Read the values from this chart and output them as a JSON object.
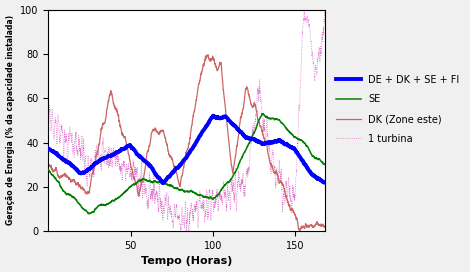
{
  "xlabel": "Tempo (Horas)",
  "ylabel": "Geração de Energia (% da capacidade instalada)",
  "xlim": [
    0,
    168
  ],
  "ylim": [
    0,
    100
  ],
  "xticks": [
    50,
    100,
    150
  ],
  "yticks": [
    0,
    20,
    40,
    60,
    80,
    100
  ],
  "legend_labels": [
    "DE + DK + SE + FI",
    "SE",
    "DK (Zone este)",
    "1 turbina"
  ],
  "blue_color": "#0000ff",
  "green_color": "#008000",
  "red_color": "#cc6666",
  "pink_color": "#dd77cc",
  "bg_color": "#ffffff",
  "fig_color": "#f0f0f0"
}
